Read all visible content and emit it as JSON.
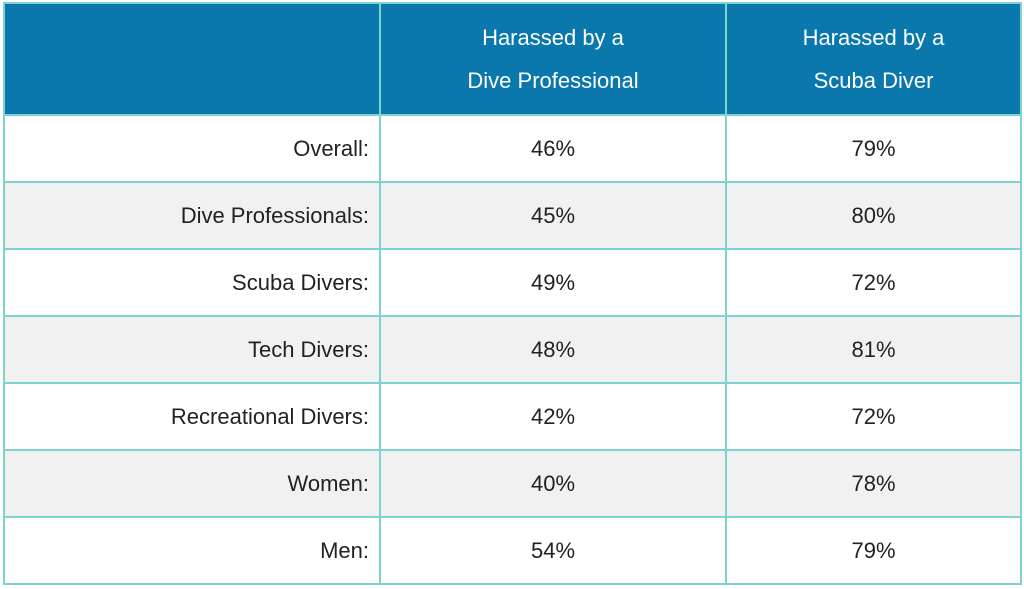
{
  "chart_data": {
    "type": "table",
    "colors": {
      "header_bg": "#0a77ad",
      "header_text": "#ffffff",
      "border": "#7fd3cf",
      "row_alt_bg": "#f1f1f1",
      "row_bg": "#ffffff"
    },
    "columns": [
      {
        "lines": [
          "",
          ""
        ]
      },
      {
        "lines": [
          "Harassed by a",
          "Dive Professional"
        ]
      },
      {
        "lines": [
          "Harassed by a",
          "Scuba Diver"
        ]
      }
    ],
    "rows": [
      {
        "label": "Overall:",
        "values": [
          "46%",
          "79%"
        ]
      },
      {
        "label": "Dive Professionals:",
        "values": [
          "45%",
          "80%"
        ]
      },
      {
        "label": "Scuba Divers:",
        "values": [
          "49%",
          "72%"
        ]
      },
      {
        "label": "Tech Divers:",
        "values": [
          "48%",
          "81%"
        ]
      },
      {
        "label": "Recreational Divers:",
        "values": [
          "42%",
          "72%"
        ]
      },
      {
        "label": "Women:",
        "values": [
          "40%",
          "78%"
        ]
      },
      {
        "label": "Men:",
        "values": [
          "54%",
          "79%"
        ]
      }
    ]
  }
}
